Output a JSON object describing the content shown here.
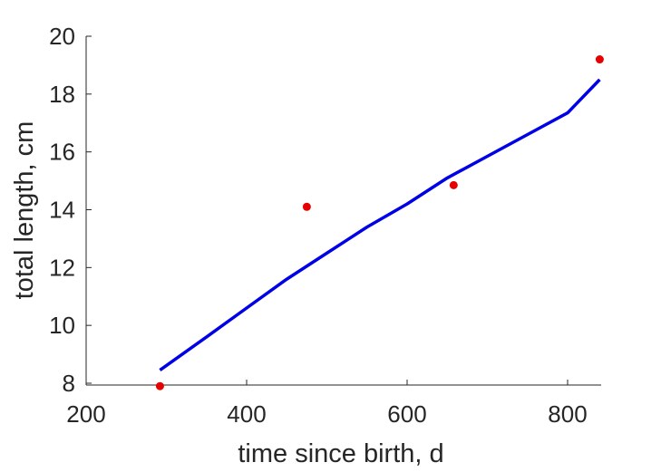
{
  "chart_data": {
    "type": "line",
    "title": "",
    "xlabel": "time since birth, d",
    "ylabel": "total length, cm",
    "xlim": [
      200,
      840
    ],
    "ylim": [
      7.9,
      20
    ],
    "x_ticks": [
      200,
      400,
      600,
      800
    ],
    "y_ticks": [
      8,
      10,
      12,
      14,
      16,
      18,
      20
    ],
    "grid": false,
    "legend": "none",
    "series": [
      {
        "kind": "line",
        "color": "#0000e6",
        "x": [
          292,
          350,
          400,
          450,
          500,
          550,
          600,
          650,
          700,
          750,
          800,
          840
        ],
        "y": [
          8.45,
          9.6,
          10.6,
          11.6,
          12.5,
          13.4,
          14.2,
          15.1,
          15.85,
          16.6,
          17.35,
          18.5
        ]
      },
      {
        "kind": "scatter",
        "color": "#e60000",
        "x": [
          292,
          475,
          658,
          840
        ],
        "y": [
          7.9,
          14.1,
          14.85,
          19.2
        ]
      }
    ]
  }
}
